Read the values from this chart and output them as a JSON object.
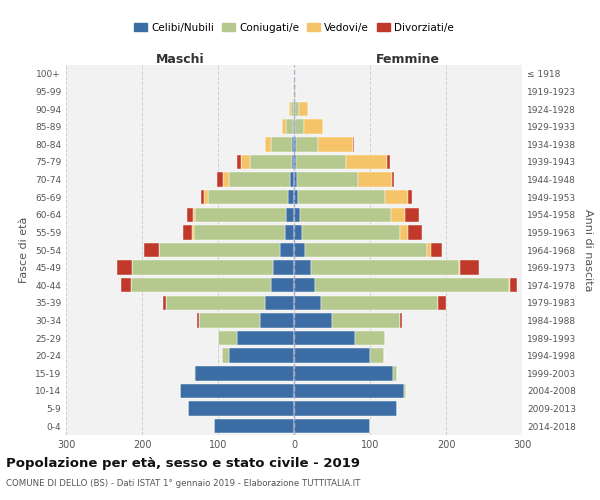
{
  "age_groups": [
    "0-4",
    "5-9",
    "10-14",
    "15-19",
    "20-24",
    "25-29",
    "30-34",
    "35-39",
    "40-44",
    "45-49",
    "50-54",
    "55-59",
    "60-64",
    "65-69",
    "70-74",
    "75-79",
    "80-84",
    "85-89",
    "90-94",
    "95-99",
    "100+"
  ],
  "birth_years": [
    "2014-2018",
    "2009-2013",
    "2004-2008",
    "1999-2003",
    "1994-1998",
    "1989-1993",
    "1984-1988",
    "1979-1983",
    "1974-1978",
    "1969-1973",
    "1964-1968",
    "1959-1963",
    "1954-1958",
    "1949-1953",
    "1944-1948",
    "1939-1943",
    "1934-1938",
    "1929-1933",
    "1924-1928",
    "1919-1923",
    "≤ 1918"
  ],
  "males": {
    "celibi": [
      105,
      140,
      150,
      130,
      85,
      75,
      45,
      38,
      30,
      28,
      18,
      12,
      10,
      8,
      5,
      3,
      2,
      1,
      0,
      0,
      0
    ],
    "coniugati": [
      0,
      0,
      0,
      2,
      10,
      25,
      80,
      130,
      185,
      185,
      160,
      120,
      120,
      105,
      80,
      55,
      28,
      10,
      4,
      1,
      0
    ],
    "vedovi": [
      0,
      0,
      0,
      0,
      0,
      0,
      0,
      0,
      0,
      0,
      0,
      2,
      3,
      5,
      8,
      12,
      8,
      5,
      2,
      0,
      0
    ],
    "divorziati": [
      0,
      0,
      0,
      0,
      0,
      0,
      2,
      5,
      12,
      20,
      20,
      12,
      8,
      5,
      8,
      5,
      0,
      0,
      0,
      0,
      0
    ]
  },
  "females": {
    "nubili": [
      100,
      135,
      145,
      130,
      100,
      80,
      50,
      35,
      28,
      22,
      15,
      10,
      8,
      5,
      4,
      3,
      2,
      1,
      1,
      0,
      0
    ],
    "coniugate": [
      0,
      0,
      2,
      5,
      18,
      40,
      90,
      155,
      255,
      195,
      160,
      130,
      120,
      115,
      80,
      65,
      30,
      12,
      5,
      1,
      0
    ],
    "vedove": [
      0,
      0,
      0,
      0,
      0,
      0,
      0,
      0,
      1,
      2,
      5,
      10,
      18,
      30,
      45,
      55,
      45,
      25,
      12,
      2,
      0
    ],
    "divorziate": [
      0,
      0,
      0,
      0,
      0,
      0,
      2,
      10,
      10,
      25,
      15,
      18,
      18,
      5,
      3,
      3,
      2,
      0,
      0,
      0,
      0
    ]
  },
  "colors": {
    "celibi": "#3c6ea5",
    "coniugati": "#b5c98e",
    "vedovi": "#f5c469",
    "divorziati": "#c0392b"
  },
  "xlim": 300,
  "title": "Popolazione per età, sesso e stato civile - 2019",
  "subtitle": "COMUNE DI DELLO (BS) - Dati ISTAT 1° gennaio 2019 - Elaborazione TUTTITALIA.IT",
  "xlabel_left": "Maschi",
  "xlabel_right": "Femmine",
  "ylabel_left": "Fasce di età",
  "ylabel_right": "Anni di nascita",
  "legend_labels": [
    "Celibi/Nubili",
    "Coniugati/e",
    "Vedovi/e",
    "Divorziati/e"
  ],
  "bg_color": "#ffffff",
  "plot_bg": "#f2f2f2",
  "grid_color": "#cccccc"
}
